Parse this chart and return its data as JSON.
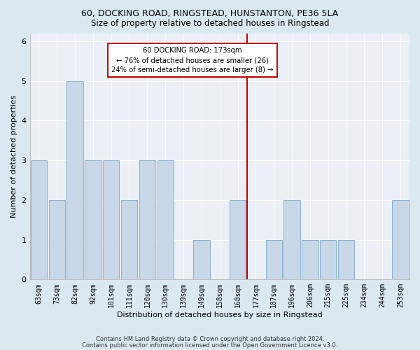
{
  "title1": "60, DOCKING ROAD, RINGSTEAD, HUNSTANTON, PE36 5LA",
  "title2": "Size of property relative to detached houses in Ringstead",
  "xlabel": "Distribution of detached houses by size in Ringstead",
  "ylabel": "Number of detached properties",
  "categories": [
    "63sqm",
    "73sqm",
    "82sqm",
    "92sqm",
    "101sqm",
    "111sqm",
    "120sqm",
    "130sqm",
    "139sqm",
    "149sqm",
    "158sqm",
    "168sqm",
    "177sqm",
    "187sqm",
    "196sqm",
    "206sqm",
    "215sqm",
    "225sqm",
    "234sqm",
    "244sqm",
    "253sqm"
  ],
  "values": [
    3,
    2,
    5,
    3,
    3,
    2,
    3,
    3,
    0,
    1,
    0,
    2,
    0,
    1,
    2,
    1,
    1,
    1,
    0,
    0,
    2
  ],
  "bar_color": "#c8d8e8",
  "bar_edge_color": "#8ab0cc",
  "vline_x_index": 11.5,
  "vline_color": "#cc0000",
  "annotation_text": "60 DOCKING ROAD: 173sqm\n← 76% of detached houses are smaller (26)\n24% of semi-detached houses are larger (8) →",
  "annotation_box_facecolor": "#ffffff",
  "annotation_box_edgecolor": "#cc0000",
  "ylim": [
    0,
    6.2
  ],
  "yticks": [
    0,
    1,
    2,
    3,
    4,
    5,
    6
  ],
  "footnote1": "Contains HM Land Registry data © Crown copyright and database right 2024.",
  "footnote2": "Contains public sector information licensed under the Open Government Licence v3.0.",
  "background_color": "#dce8f0",
  "plot_bg_color": "#eaf0f6",
  "title1_fontsize": 9,
  "title2_fontsize": 8.5,
  "ylabel_fontsize": 8,
  "xlabel_fontsize": 8,
  "tick_fontsize": 7,
  "footnote_fontsize": 6
}
